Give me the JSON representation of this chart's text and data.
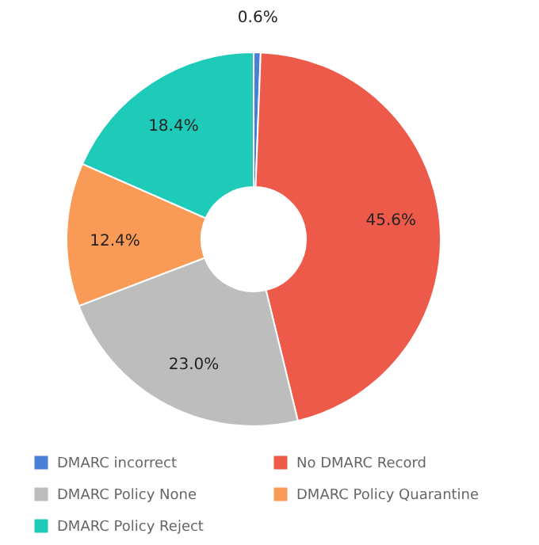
{
  "chart_data": {
    "type": "donut",
    "categories": [
      "DMARC incorrect",
      "No DMARC Record",
      "DMARC Policy None",
      "DMARC Policy Quarantine",
      "DMARC Policy Reject"
    ],
    "values": [
      0.6,
      45.6,
      23.0,
      12.4,
      18.4
    ],
    "value_labels": [
      "0.6%",
      "45.6%",
      "23.0%",
      "12.4%",
      "18.4%"
    ],
    "colors": [
      "#4a7fd6",
      "#ee5a4a",
      "#bdbdbd",
      "#fa9a57",
      "#1ecbb9"
    ],
    "legend": "bottom"
  }
}
